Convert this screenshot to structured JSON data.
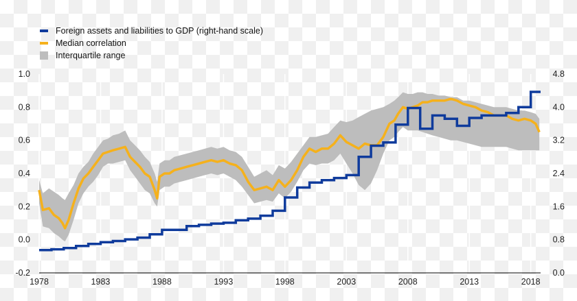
{
  "chart_data": {
    "type": "line",
    "title": "",
    "xlabel": "",
    "ylabel_left": "",
    "ylabel_right": "",
    "x_range": [
      1978,
      2018.8
    ],
    "x_ticks": [
      "1978",
      "1983",
      "1988",
      "1993",
      "1998",
      "2003",
      "2008",
      "2013",
      "2018"
    ],
    "ylim_left": [
      -0.2,
      1.0
    ],
    "y_ticks_left": [
      "-0.2",
      "0.0",
      "0.2",
      "0.4",
      "0.6",
      "0.8",
      "1.0"
    ],
    "ylim_right": [
      0.0,
      4.8
    ],
    "y_ticks_right": [
      "0.0",
      "0.8",
      "1.6",
      "2.4",
      "3.2",
      "4.0",
      "4.8"
    ],
    "grid": "vertical",
    "legend_position": "top-left",
    "colors": {
      "foreign": "#0f3b9c",
      "median": "#f5b11c",
      "iqr": "#bdbdbd"
    },
    "series": [
      {
        "name": "Foreign assets and liabilities to GDP (right-hand scale)",
        "axis": "right",
        "style": "step",
        "x": [
          1978,
          1979,
          1980,
          1981,
          1982,
          1983,
          1984,
          1985,
          1986,
          1987,
          1988,
          1989,
          1990,
          1991,
          1992,
          1993,
          1994,
          1995,
          1996,
          1997,
          1998,
          1999,
          2000,
          2001,
          2002,
          2003,
          2004,
          2005,
          2006,
          2007,
          2008,
          2009,
          2010,
          2011,
          2012,
          2013,
          2014,
          2015,
          2016,
          2017,
          2018,
          2018.8
        ],
        "values": [
          0.55,
          0.57,
          0.6,
          0.65,
          0.7,
          0.74,
          0.77,
          0.81,
          0.85,
          0.93,
          1.04,
          1.04,
          1.13,
          1.16,
          1.19,
          1.21,
          1.27,
          1.31,
          1.38,
          1.5,
          1.82,
          2.06,
          2.18,
          2.24,
          2.29,
          2.36,
          2.8,
          3.07,
          3.15,
          3.58,
          3.98,
          3.48,
          3.8,
          3.72,
          3.55,
          3.74,
          3.8,
          3.8,
          3.86,
          4.0,
          4.37,
          4.37
        ]
      },
      {
        "name": "Median correlation",
        "axis": "left",
        "x": [
          1978.0,
          1978.3,
          1978.8,
          1979.2,
          1979.6,
          1979.9,
          1980.1,
          1980.4,
          1980.8,
          1981.2,
          1981.6,
          1982.0,
          1982.4,
          1982.8,
          1983.2,
          1983.6,
          1984.0,
          1984.5,
          1985.0,
          1985.4,
          1985.8,
          1986.2,
          1986.6,
          1987.0,
          1987.4,
          1987.6,
          1987.8,
          1988.2,
          1988.6,
          1989.0,
          1989.5,
          1990.0,
          1990.5,
          1991.0,
          1991.5,
          1992.0,
          1992.5,
          1993.0,
          1993.5,
          1994.0,
          1994.5,
          1995.0,
          1995.5,
          1996.0,
          1996.5,
          1997.0,
          1997.5,
          1998.0,
          1998.5,
          1999.0,
          1999.5,
          2000.0,
          2000.5,
          2001.0,
          2001.5,
          2002.0,
          2002.5,
          2003.0,
          2003.5,
          2004.0,
          2004.5,
          2005.0,
          2005.5,
          2006.0,
          2006.5,
          2006.9,
          2007.2,
          2007.6,
          2008.0,
          2008.4,
          2008.8,
          2009.2,
          2009.6,
          2010.0,
          2010.5,
          2011.0,
          2011.5,
          2012.0,
          2012.5,
          2013.0,
          2013.5,
          2014.0,
          2014.5,
          2015.0,
          2015.5,
          2016.0,
          2016.5,
          2017.0,
          2017.5,
          2018.0,
          2018.4,
          2018.7
        ],
        "values": [
          0.3,
          0.18,
          0.19,
          0.15,
          0.13,
          0.1,
          0.07,
          0.12,
          0.22,
          0.31,
          0.37,
          0.4,
          0.44,
          0.48,
          0.52,
          0.53,
          0.54,
          0.55,
          0.56,
          0.5,
          0.47,
          0.44,
          0.4,
          0.38,
          0.3,
          0.25,
          0.38,
          0.4,
          0.4,
          0.42,
          0.43,
          0.44,
          0.45,
          0.46,
          0.47,
          0.48,
          0.47,
          0.48,
          0.46,
          0.45,
          0.42,
          0.35,
          0.3,
          0.31,
          0.32,
          0.3,
          0.36,
          0.32,
          0.36,
          0.42,
          0.5,
          0.55,
          0.53,
          0.55,
          0.55,
          0.58,
          0.63,
          0.59,
          0.57,
          0.55,
          0.58,
          0.57,
          0.57,
          0.62,
          0.7,
          0.72,
          0.76,
          0.8,
          0.79,
          0.8,
          0.81,
          0.83,
          0.83,
          0.84,
          0.84,
          0.84,
          0.85,
          0.84,
          0.82,
          0.81,
          0.8,
          0.78,
          0.77,
          0.75,
          0.75,
          0.75,
          0.73,
          0.72,
          0.73,
          0.72,
          0.7,
          0.65
        ]
      },
      {
        "name": "Interquartile range",
        "axis": "left",
        "style": "band",
        "x": [
          1978.0,
          1978.3,
          1978.8,
          1979.2,
          1979.6,
          1979.9,
          1980.1,
          1980.4,
          1980.8,
          1981.2,
          1981.6,
          1982.0,
          1982.4,
          1982.8,
          1983.2,
          1983.6,
          1984.0,
          1984.5,
          1985.0,
          1985.4,
          1985.8,
          1986.2,
          1986.6,
          1987.0,
          1987.4,
          1987.6,
          1987.8,
          1988.2,
          1988.6,
          1989.0,
          1989.5,
          1990.0,
          1990.5,
          1991.0,
          1991.5,
          1992.0,
          1992.5,
          1993.0,
          1993.5,
          1994.0,
          1994.5,
          1995.0,
          1995.5,
          1996.0,
          1996.5,
          1997.0,
          1997.5,
          1998.0,
          1998.5,
          1999.0,
          1999.5,
          2000.0,
          2000.5,
          2001.0,
          2001.5,
          2002.0,
          2002.5,
          2003.0,
          2003.5,
          2004.0,
          2004.5,
          2005.0,
          2005.5,
          2006.0,
          2006.5,
          2006.9,
          2007.2,
          2007.6,
          2008.0,
          2008.4,
          2008.8,
          2009.2,
          2009.6,
          2010.0,
          2010.5,
          2011.0,
          2011.5,
          2012.0,
          2012.5,
          2013.0,
          2013.5,
          2014.0,
          2014.5,
          2015.0,
          2015.5,
          2016.0,
          2016.5,
          2017.0,
          2017.5,
          2018.0,
          2018.4,
          2018.7
        ],
        "lower": [
          0.22,
          0.08,
          0.07,
          0.04,
          0.02,
          0.0,
          -0.01,
          0.03,
          0.12,
          0.22,
          0.28,
          0.32,
          0.35,
          0.39,
          0.44,
          0.46,
          0.46,
          0.47,
          0.48,
          0.42,
          0.38,
          0.34,
          0.3,
          0.28,
          0.22,
          0.2,
          0.3,
          0.32,
          0.32,
          0.34,
          0.35,
          0.36,
          0.37,
          0.38,
          0.39,
          0.4,
          0.39,
          0.4,
          0.38,
          0.36,
          0.32,
          0.27,
          0.22,
          0.23,
          0.24,
          0.23,
          0.28,
          0.25,
          0.29,
          0.35,
          0.42,
          0.46,
          0.45,
          0.46,
          0.46,
          0.48,
          0.52,
          0.46,
          0.4,
          0.33,
          0.3,
          0.34,
          0.42,
          0.52,
          0.6,
          0.62,
          0.65,
          0.68,
          0.66,
          0.66,
          0.66,
          0.65,
          0.64,
          0.63,
          0.62,
          0.61,
          0.6,
          0.6,
          0.59,
          0.58,
          0.57,
          0.56,
          0.56,
          0.56,
          0.56,
          0.56,
          0.55,
          0.54,
          0.54,
          0.54,
          0.54,
          0.54
        ],
        "upper": [
          0.36,
          0.28,
          0.31,
          0.29,
          0.27,
          0.25,
          0.24,
          0.28,
          0.33,
          0.4,
          0.44,
          0.47,
          0.52,
          0.56,
          0.6,
          0.61,
          0.63,
          0.64,
          0.66,
          0.6,
          0.57,
          0.54,
          0.5,
          0.47,
          0.4,
          0.35,
          0.46,
          0.48,
          0.48,
          0.5,
          0.51,
          0.52,
          0.53,
          0.54,
          0.55,
          0.56,
          0.55,
          0.56,
          0.54,
          0.53,
          0.5,
          0.44,
          0.38,
          0.4,
          0.42,
          0.39,
          0.45,
          0.43,
          0.47,
          0.52,
          0.57,
          0.62,
          0.62,
          0.63,
          0.64,
          0.68,
          0.72,
          0.71,
          0.72,
          0.74,
          0.76,
          0.78,
          0.79,
          0.8,
          0.82,
          0.84,
          0.86,
          0.89,
          0.88,
          0.88,
          0.89,
          0.89,
          0.88,
          0.88,
          0.87,
          0.87,
          0.86,
          0.86,
          0.84,
          0.84,
          0.83,
          0.82,
          0.81,
          0.8,
          0.8,
          0.8,
          0.79,
          0.78,
          0.78,
          0.77,
          0.76,
          0.73
        ]
      }
    ]
  }
}
